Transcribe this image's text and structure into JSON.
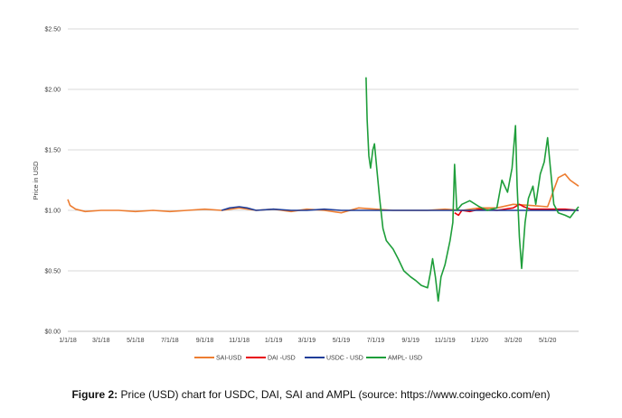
{
  "chart_data": {
    "type": "line",
    "title": "",
    "xlabel": "",
    "ylabel": "Price in USD",
    "x_tick_labels": [
      "1/1/18",
      "3/1/18",
      "5/1/18",
      "7/1/18",
      "9/1/18",
      "11/1/18",
      "1/1/19",
      "3/1/19",
      "5/1/19",
      "7/1/19",
      "9/1/19",
      "11/1/19",
      "1/1/20",
      "3/1/20",
      "5/1/20"
    ],
    "y_tick_labels": [
      "$0.00",
      "$0.50",
      "$1.00",
      "$1.50",
      "$2.00",
      "$2.50"
    ],
    "ylim": [
      0,
      2.5
    ],
    "xlim": [
      "2018-01-01",
      "2020-06-25"
    ],
    "grid": "horizontal",
    "legend_position": "bottom",
    "series": [
      {
        "name": "SAI-USD",
        "color": "#ED7D31",
        "points": [
          [
            "2018-01-01",
            1.09
          ],
          [
            "2018-01-05",
            1.04
          ],
          [
            "2018-01-15",
            1.01
          ],
          [
            "2018-02-01",
            0.99
          ],
          [
            "2018-03-01",
            1.0
          ],
          [
            "2018-04-01",
            1.0
          ],
          [
            "2018-05-01",
            0.99
          ],
          [
            "2018-06-01",
            1.0
          ],
          [
            "2018-07-01",
            0.99
          ],
          [
            "2018-08-01",
            1.0
          ],
          [
            "2018-09-01",
            1.01
          ],
          [
            "2018-10-01",
            1.0
          ],
          [
            "2018-11-01",
            1.02
          ],
          [
            "2018-12-01",
            1.0
          ],
          [
            "2019-01-01",
            1.01
          ],
          [
            "2019-02-01",
            0.99
          ],
          [
            "2019-03-01",
            1.01
          ],
          [
            "2019-04-01",
            1.0
          ],
          [
            "2019-05-01",
            0.98
          ],
          [
            "2019-06-01",
            1.02
          ],
          [
            "2019-07-01",
            1.01
          ],
          [
            "2019-08-01",
            1.0
          ],
          [
            "2019-09-01",
            1.0
          ],
          [
            "2019-10-01",
            1.0
          ],
          [
            "2019-11-01",
            1.01
          ],
          [
            "2019-12-01",
            1.0
          ],
          [
            "2020-01-01",
            1.02
          ],
          [
            "2020-02-01",
            1.02
          ],
          [
            "2020-03-01",
            1.05
          ],
          [
            "2020-04-01",
            1.04
          ],
          [
            "2020-05-01",
            1.03
          ],
          [
            "2020-05-20",
            1.27
          ],
          [
            "2020-06-01",
            1.3
          ],
          [
            "2020-06-10",
            1.25
          ],
          [
            "2020-06-25",
            1.2
          ]
        ]
      },
      {
        "name": "DAI -USD",
        "color": "#E8000B",
        "points": [
          [
            "2019-11-18",
            0.98
          ],
          [
            "2019-11-25",
            0.96
          ],
          [
            "2019-12-01",
            1.0
          ],
          [
            "2019-12-15",
            0.99
          ],
          [
            "2020-01-01",
            1.01
          ],
          [
            "2020-02-01",
            1.0
          ],
          [
            "2020-03-01",
            1.02
          ],
          [
            "2020-03-12",
            1.05
          ],
          [
            "2020-03-20",
            1.03
          ],
          [
            "2020-04-01",
            1.01
          ],
          [
            "2020-05-01",
            1.01
          ],
          [
            "2020-06-01",
            1.01
          ],
          [
            "2020-06-25",
            1.0
          ]
        ]
      },
      {
        "name": "USDC - USD",
        "color": "#1F3D99",
        "points": [
          [
            "2018-10-01",
            1.0
          ],
          [
            "2018-10-15",
            1.02
          ],
          [
            "2018-11-01",
            1.03
          ],
          [
            "2018-11-15",
            1.02
          ],
          [
            "2018-12-01",
            1.0
          ],
          [
            "2019-01-01",
            1.01
          ],
          [
            "2019-02-01",
            1.0
          ],
          [
            "2019-03-01",
            1.0
          ],
          [
            "2019-04-01",
            1.01
          ],
          [
            "2019-05-01",
            1.0
          ],
          [
            "2019-06-01",
            1.0
          ],
          [
            "2019-07-01",
            1.0
          ],
          [
            "2019-08-01",
            1.0
          ],
          [
            "2019-09-01",
            1.0
          ],
          [
            "2019-10-01",
            1.0
          ],
          [
            "2019-11-01",
            1.0
          ],
          [
            "2019-12-01",
            1.0
          ],
          [
            "2020-01-01",
            1.0
          ],
          [
            "2020-02-01",
            1.0
          ],
          [
            "2020-03-01",
            1.0
          ],
          [
            "2020-04-01",
            1.0
          ],
          [
            "2020-05-01",
            1.0
          ],
          [
            "2020-06-25",
            1.0
          ]
        ]
      },
      {
        "name": "AMPL- USD",
        "color": "#1E9E3A",
        "points": [
          [
            "2019-06-14",
            2.1
          ],
          [
            "2019-06-16",
            1.75
          ],
          [
            "2019-06-19",
            1.45
          ],
          [
            "2019-06-22",
            1.35
          ],
          [
            "2019-06-26",
            1.5
          ],
          [
            "2019-06-29",
            1.55
          ],
          [
            "2019-07-03",
            1.35
          ],
          [
            "2019-07-08",
            1.1
          ],
          [
            "2019-07-14",
            0.85
          ],
          [
            "2019-07-20",
            0.75
          ],
          [
            "2019-08-01",
            0.68
          ],
          [
            "2019-08-10",
            0.6
          ],
          [
            "2019-08-20",
            0.5
          ],
          [
            "2019-09-01",
            0.45
          ],
          [
            "2019-09-10",
            0.42
          ],
          [
            "2019-09-20",
            0.38
          ],
          [
            "2019-10-01",
            0.36
          ],
          [
            "2019-10-06",
            0.48
          ],
          [
            "2019-10-10",
            0.6
          ],
          [
            "2019-10-15",
            0.45
          ],
          [
            "2019-10-20",
            0.25
          ],
          [
            "2019-10-25",
            0.45
          ],
          [
            "2019-11-01",
            0.55
          ],
          [
            "2019-11-10",
            0.75
          ],
          [
            "2019-11-15",
            0.9
          ],
          [
            "2019-11-18",
            1.38
          ],
          [
            "2019-11-22",
            1.0
          ],
          [
            "2019-12-01",
            1.05
          ],
          [
            "2019-12-15",
            1.08
          ],
          [
            "2020-01-01",
            1.03
          ],
          [
            "2020-01-15",
            1.0
          ],
          [
            "2020-02-01",
            1.02
          ],
          [
            "2020-02-10",
            1.25
          ],
          [
            "2020-02-20",
            1.15
          ],
          [
            "2020-02-28",
            1.35
          ],
          [
            "2020-03-05",
            1.7
          ],
          [
            "2020-03-08",
            1.2
          ],
          [
            "2020-03-12",
            0.78
          ],
          [
            "2020-03-16",
            0.52
          ],
          [
            "2020-03-22",
            0.9
          ],
          [
            "2020-03-28",
            1.1
          ],
          [
            "2020-04-05",
            1.2
          ],
          [
            "2020-04-10",
            1.05
          ],
          [
            "2020-04-18",
            1.3
          ],
          [
            "2020-04-25",
            1.4
          ],
          [
            "2020-05-01",
            1.6
          ],
          [
            "2020-05-06",
            1.35
          ],
          [
            "2020-05-12",
            1.05
          ],
          [
            "2020-05-20",
            0.98
          ],
          [
            "2020-06-01",
            0.96
          ],
          [
            "2020-06-10",
            0.94
          ],
          [
            "2020-06-18",
            0.99
          ],
          [
            "2020-06-25",
            1.03
          ]
        ]
      }
    ]
  },
  "caption": {
    "label": "Figure 2:",
    "text": " Price (USD) chart for USDC, DAI, SAI and AMPL (source: https://www.coingecko.com/en)"
  }
}
